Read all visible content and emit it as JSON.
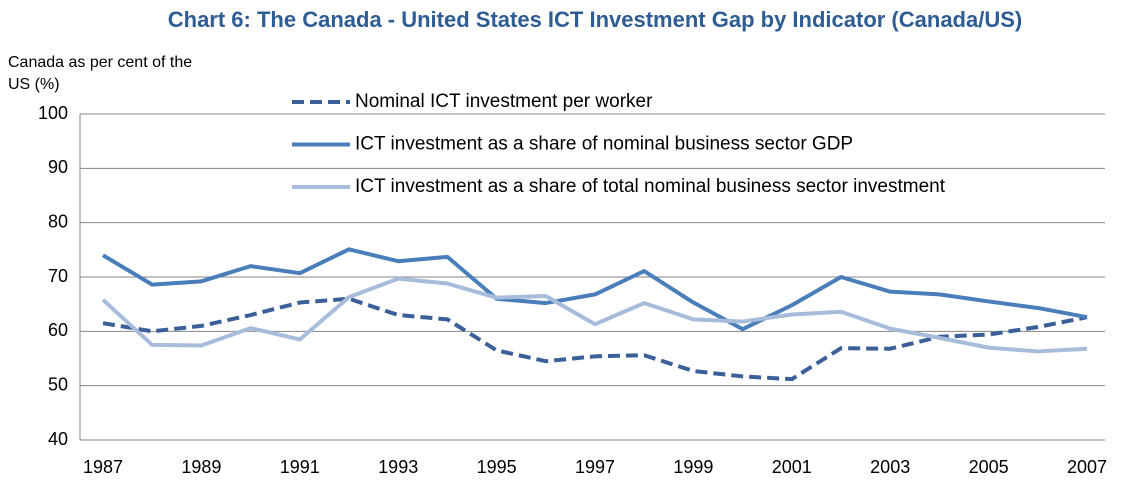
{
  "chart_data": {
    "type": "line",
    "title": "Chart 6: The Canada - United States ICT Investment Gap by Indicator (Canada/US)",
    "y_label": "Canada as per cent of the US (%)",
    "x": [
      1987,
      1988,
      1989,
      1990,
      1991,
      1992,
      1993,
      1994,
      1995,
      1996,
      1997,
      1998,
      1999,
      2000,
      2001,
      2002,
      2003,
      2004,
      2005,
      2006,
      2007
    ],
    "xlim": [
      1987,
      2007
    ],
    "xticks": [
      1987,
      1989,
      1991,
      1993,
      1995,
      1997,
      1999,
      2001,
      2003,
      2005,
      2007
    ],
    "ylim": [
      40,
      100
    ],
    "yticks": [
      40,
      50,
      60,
      70,
      80,
      90,
      100
    ],
    "grid": true,
    "legend": "top",
    "series": [
      {
        "name": "Nominal ICT investment per worker",
        "color": "#3a5f99",
        "dash": true,
        "values": [
          61.5,
          60,
          61,
          63,
          65.3,
          66,
          63,
          62.2,
          56.5,
          54.5,
          55.4,
          55.6,
          52.7,
          51.7,
          51.2,
          56.9,
          56.8,
          59,
          59.4,
          60.8,
          62.6
        ]
      },
      {
        "name": "ICT investment as a share of nominal business sector GDP",
        "color": "#4a7ebb",
        "dash": false,
        "values": [
          74,
          68.6,
          69.2,
          72,
          70.7,
          75.1,
          72.9,
          73.7,
          66,
          65.2,
          66.8,
          71.1,
          65.3,
          60.4,
          64.8,
          70,
          67.3,
          66.8,
          65.5,
          64.3,
          62.6
        ]
      },
      {
        "name": "ICT investment as a share of total nominal business sector investment",
        "color": "#a7bcdb",
        "dash": false,
        "values": [
          65.8,
          57.5,
          57.4,
          60.6,
          58.5,
          66.3,
          69.7,
          68.8,
          66.2,
          66.5,
          61.3,
          65.2,
          62.2,
          61.8,
          63.1,
          63.6,
          60.5,
          58.8,
          57,
          56.3,
          56.8
        ]
      }
    ]
  }
}
